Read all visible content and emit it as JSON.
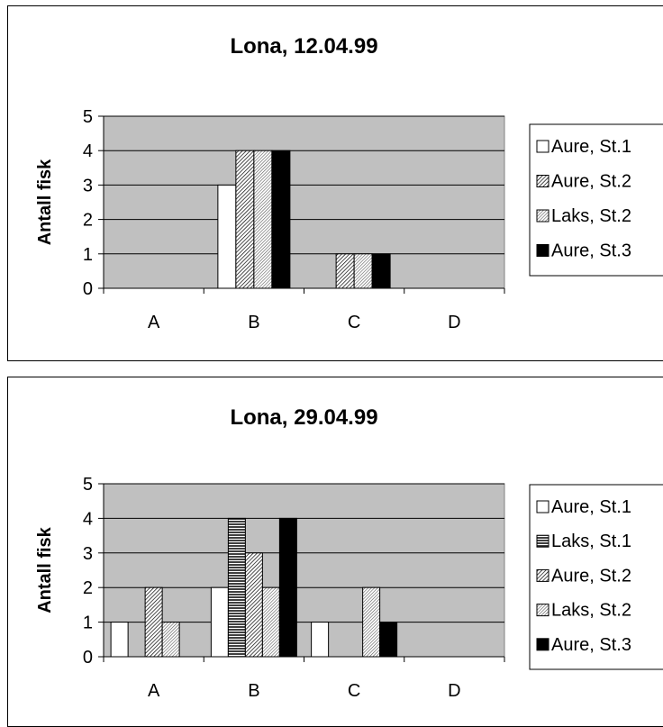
{
  "chart_data": [
    {
      "type": "bar",
      "title": "Lona, 12.04.99",
      "xlabel": "",
      "ylabel": "Antall fisk",
      "categories": [
        "A",
        "B",
        "C",
        "D"
      ],
      "yticks": [
        "0",
        "1",
        "2",
        "3",
        "4",
        "5"
      ],
      "ylim": [
        0,
        5
      ],
      "grid": true,
      "legend_position": "right",
      "series": [
        {
          "name": "Aure, St.1",
          "values": [
            0,
            3,
            0,
            0
          ],
          "pattern": "white"
        },
        {
          "name": "Aure, St.2",
          "values": [
            0,
            4,
            1,
            0
          ],
          "pattern": "dense-diagonal"
        },
        {
          "name": "Laks, St.2",
          "values": [
            0,
            4,
            1,
            0
          ],
          "pattern": "sparse-diagonal"
        },
        {
          "name": "Aure, St.3",
          "values": [
            0,
            4,
            1,
            0
          ],
          "pattern": "black"
        }
      ]
    },
    {
      "type": "bar",
      "title": "Lona, 29.04.99",
      "xlabel": "",
      "ylabel": "Antall fisk",
      "categories": [
        "A",
        "B",
        "C",
        "D"
      ],
      "yticks": [
        "0",
        "1",
        "2",
        "3",
        "4",
        "5"
      ],
      "ylim": [
        0,
        5
      ],
      "grid": true,
      "legend_position": "right",
      "series": [
        {
          "name": "Aure, St.1",
          "values": [
            1,
            2,
            1,
            0
          ],
          "pattern": "white"
        },
        {
          "name": "Laks, St.1",
          "values": [
            0,
            4,
            0,
            0
          ],
          "pattern": "horizontal"
        },
        {
          "name": "Aure, St.2",
          "values": [
            2,
            3,
            0,
            0
          ],
          "pattern": "dense-diagonal"
        },
        {
          "name": "Laks, St.2",
          "values": [
            1,
            2,
            2,
            0
          ],
          "pattern": "sparse-diagonal"
        },
        {
          "name": "Aure, St.3",
          "values": [
            0,
            4,
            1,
            0
          ],
          "pattern": "black"
        }
      ]
    }
  ],
  "colors": {
    "plot_background": "#c0c0c0",
    "bar_outline": "#000000",
    "gridline": "#000000",
    "frame": "#000000"
  }
}
